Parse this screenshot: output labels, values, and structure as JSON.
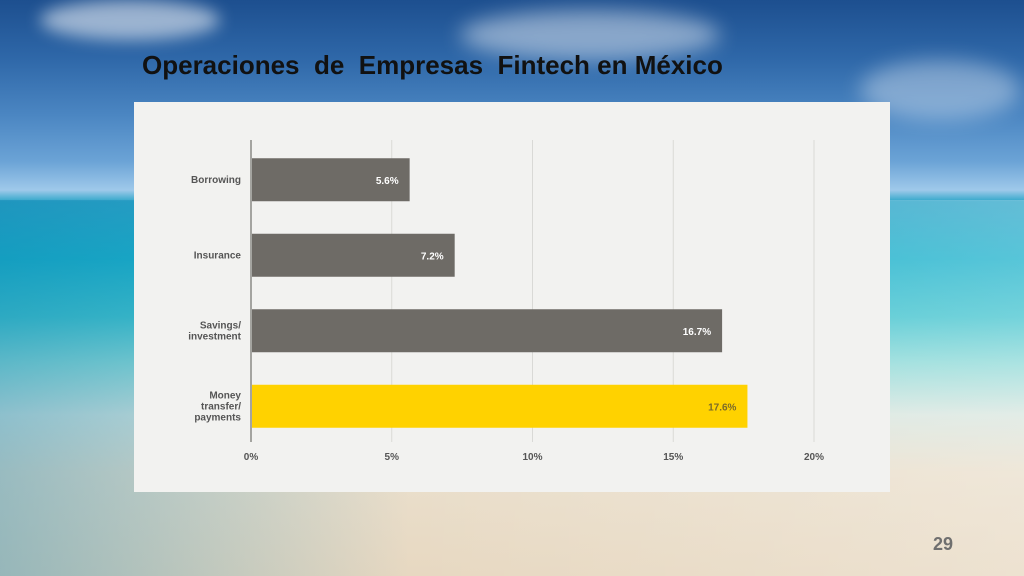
{
  "slide": {
    "title": "Operaciones  de  Empresas  Fintech en México",
    "page_number": "29"
  },
  "colors": {
    "bar_default": "#6e6b66",
    "bar_highlight": "#ffd200",
    "panel": "#f2f2f0",
    "gridline": "#d9d9d6",
    "axis_text": "#555555",
    "value_label": "#ffffff"
  },
  "chart_data": {
    "type": "bar",
    "orientation": "horizontal",
    "categories": [
      "Borrowing",
      "Insurance",
      "Savings/\ninvestment",
      "Money\ntransfer/\npayments"
    ],
    "values": [
      5.6,
      7.2,
      16.7,
      17.6
    ],
    "value_labels": [
      "5.6%",
      "7.2%",
      "16.7%",
      "17.6%"
    ],
    "highlight_index": 3,
    "xlim": [
      0,
      20
    ],
    "xticks": [
      0,
      5,
      10,
      15,
      20
    ],
    "xtick_labels": [
      "0%",
      "5%",
      "10%",
      "15%",
      "20%"
    ],
    "title": "",
    "xlabel": "",
    "ylabel": "",
    "grid": true,
    "legend": "none"
  }
}
